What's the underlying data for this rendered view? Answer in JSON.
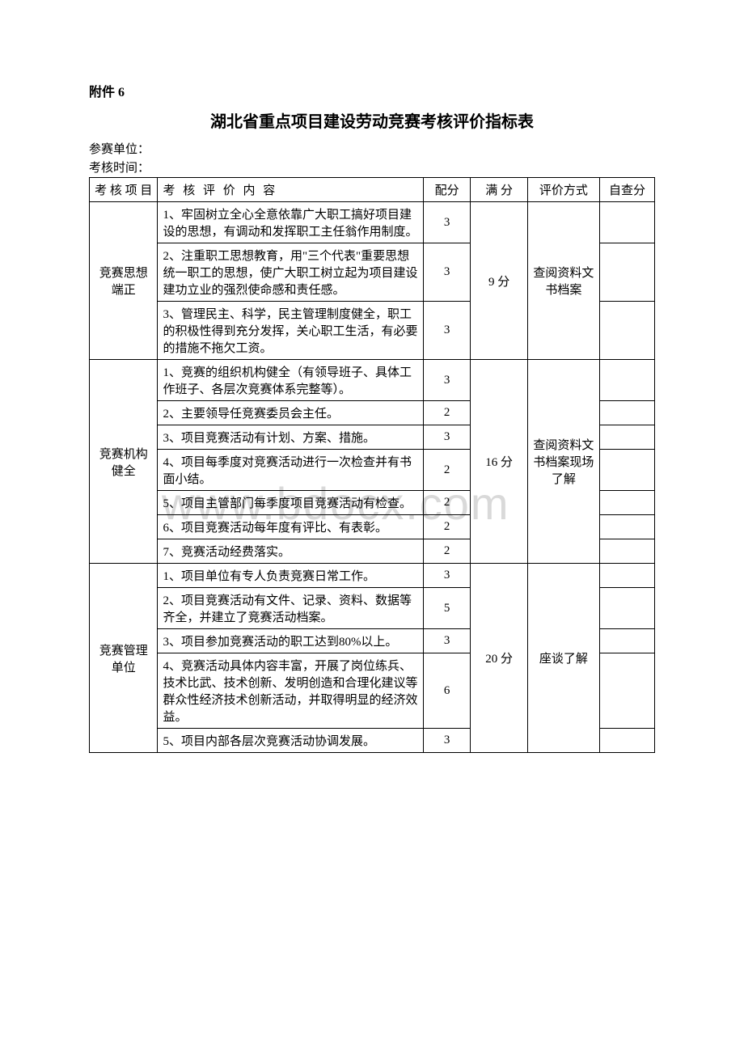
{
  "attachment": "附件 6",
  "title": "湖北省重点项目建设劳动竞赛考核评价指标表",
  "field_unit": "参赛单位：",
  "field_time": "考核时间：",
  "watermark": "www.bdocx.com",
  "headers": {
    "category": "考 核 项 目",
    "content": "考  核  评  价  内  容",
    "points": "配分",
    "full": "满 分",
    "method": "评价方式",
    "self": "自查分"
  },
  "sections": [
    {
      "category": "竞赛思想端正",
      "full": "9 分",
      "method": "查阅资料文书档案",
      "rows": [
        {
          "content": "1、牢固树立全心全意依靠广大职工搞好项目建设的思想，有调动和发挥职工主任翁作用制度。",
          "points": "3"
        },
        {
          "content": "2、注重职工思想教育，用\"三个代表\"重要思想统一职工的思想，使广大职工树立起为项目建设建功立业的强烈使命感和责任感。",
          "points": "3"
        },
        {
          "content": "3、管理民主、科学，民主管理制度健全，职工的积极性得到充分发挥，关心职工生活，有必要的措施不拖欠工资。",
          "points": "3"
        }
      ]
    },
    {
      "category": "竞赛机构健全",
      "full": "16 分",
      "method": "查阅资料文书档案现场了解",
      "rows": [
        {
          "content": "1、竞赛的组织机构健全（有领导班子、具体工作班子、各层次竞赛体系完整等）。",
          "points": "3"
        },
        {
          "content": "2、主要领导任竞赛委员会主任。",
          "points": "2"
        },
        {
          "content": "3、项目竞赛活动有计划、方案、措施。",
          "points": "3"
        },
        {
          "content": "4、项目每季度对竞赛活动进行一次检查并有书面小结。",
          "points": "2"
        },
        {
          "content": "5、项目主管部门每季度项目竞赛活动有检查。",
          "points": "2"
        },
        {
          "content": "6、项目竞赛活动每年度有评比、有表彰。",
          "points": "2"
        },
        {
          "content": "7、竞赛活动经费落实。",
          "points": "2"
        }
      ]
    },
    {
      "category": "竞赛管理单位",
      "full": "20 分",
      "method": "座谈了解",
      "rows": [
        {
          "content": "1、项目单位有专人负责竞赛日常工作。",
          "points": "3"
        },
        {
          "content": "2、项目竞赛活动有文件、记录、资料、数据等齐全，并建立了竞赛活动档案。",
          "points": "5"
        },
        {
          "content": "3、项目参加竞赛活动的职工达到80%以上。",
          "points": "3"
        },
        {
          "content": "4、竞赛活动具体内容丰富，开展了岗位练兵、技术比武、技术创新、发明创造和合理化建议等群众性经济技术创新活动，并取得明显的经济效益。",
          "points": "6"
        },
        {
          "content": "5、项目内部各层次竞赛活动协调发展。",
          "points": "3"
        }
      ]
    }
  ]
}
